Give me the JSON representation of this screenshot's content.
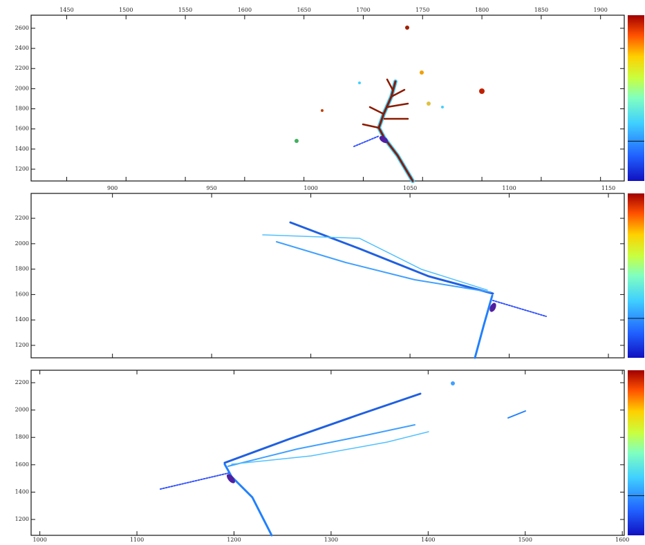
{
  "chart_data": [
    {
      "type": "heatmap",
      "colormap": "jet",
      "xaxis_position": "top",
      "xlim": [
        1420,
        1920
      ],
      "ylim": [
        1083,
        2730
      ],
      "xticks": [
        1450,
        1500,
        1550,
        1600,
        1650,
        1700,
        1750,
        1800,
        1850,
        1900
      ],
      "yticks": [
        1200,
        1400,
        1600,
        1800,
        2000,
        2200,
        2400,
        2600
      ]
    },
    {
      "type": "heatmap",
      "colormap": "jet",
      "xaxis_position": "top",
      "xlim": [
        859,
        1158
      ],
      "ylim": [
        1102,
        2396
      ],
      "xticks": [
        900,
        950,
        1000,
        1050,
        1100,
        1150
      ],
      "yticks": [
        1200,
        1400,
        1600,
        1800,
        2000,
        2200
      ]
    },
    {
      "type": "heatmap",
      "colormap": "jet",
      "xaxis_position": "bottom",
      "xlim": [
        991,
        1602
      ],
      "ylim": [
        1084,
        2291
      ],
      "xticks": [
        1000,
        1100,
        1200,
        1300,
        1400,
        1500,
        1600
      ],
      "yticks": [
        1200,
        1400,
        1600,
        1800,
        2000,
        2200
      ]
    }
  ]
}
